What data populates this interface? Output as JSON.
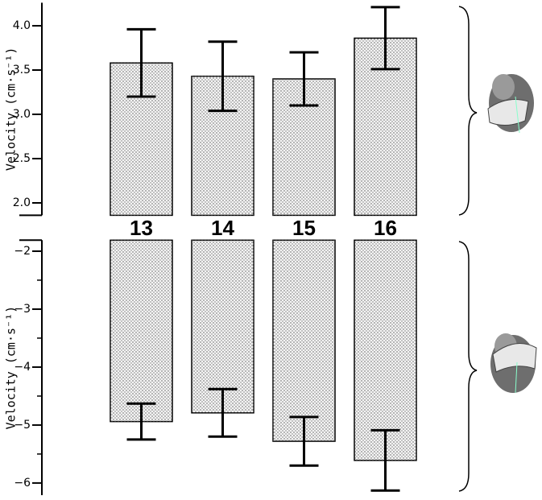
{
  "chart_data": [
    {
      "type": "bar",
      "y_label": "Velocity (cm·s⁻¹)",
      "categories": [
        "13",
        "14",
        "15",
        "16"
      ],
      "values": [
        3.58,
        3.43,
        3.4,
        3.86
      ],
      "errors": [
        0.38,
        0.39,
        0.3,
        0.35
      ],
      "color": "#f4f4f4",
      "ylim": [
        1.86,
        4.26
      ],
      "yticks": [
        {
          "value": 2,
          "label": "2.0"
        },
        2.5,
        {
          "value": 3,
          "label": "3.0"
        },
        3.5,
        {
          "value": 4,
          "label": "4.0"
        }
      ]
    },
    {
      "type": "bar",
      "y_label": "Velocity (cm·s⁻¹)",
      "values": [
        -4.94,
        -4.79,
        -5.28,
        -5.61
      ],
      "errors": [
        0.31,
        0.41,
        0.42,
        0.52
      ],
      "color": "#f4f4f4",
      "ylim": [
        -6.21,
        -1.81
      ],
      "yticks": [
        {
          "value": -6,
          "label": "−6"
        },
        {
          "value": -5,
          "label": "−5"
        },
        {
          "value": -4,
          "label": "−4"
        },
        {
          "value": -3,
          "label": "−3"
        },
        {
          "value": -2,
          "label": "−2"
        }
      ],
      "minor_yticks": [
        -5.5,
        -4.5,
        -3.5,
        -2.5
      ]
    }
  ]
}
